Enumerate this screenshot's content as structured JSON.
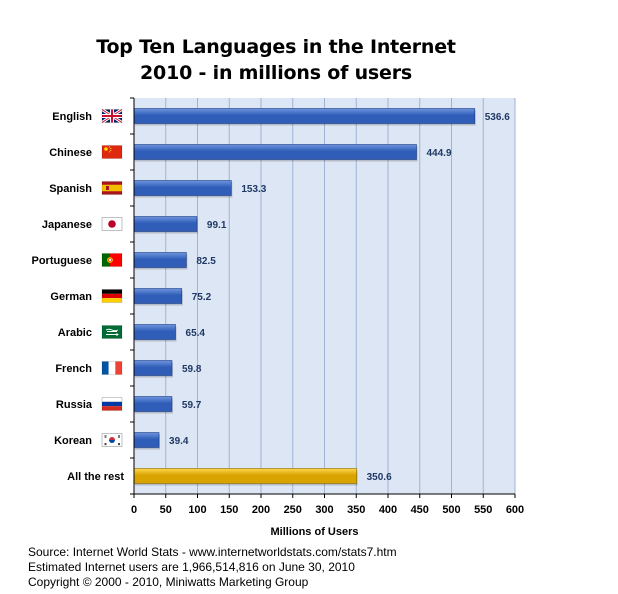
{
  "chart_data": {
    "type": "bar",
    "orientation": "horizontal",
    "title": "Top Ten Languages in the Internet",
    "subtitle": "2010 - in millions of users",
    "xlabel": "Millions of Users",
    "ylabel": "",
    "xlim": [
      0,
      600
    ],
    "xticks": [
      0,
      50,
      100,
      150,
      200,
      250,
      300,
      350,
      400,
      450,
      500,
      550,
      600
    ],
    "grid": "vertical",
    "categories": [
      "English",
      "Chinese",
      "Spanish",
      "Japanese",
      "Portuguese",
      "German",
      "Arabic",
      "French",
      "Russia",
      "Korean",
      "All the rest"
    ],
    "values": [
      536.6,
      444.9,
      153.3,
      99.1,
      82.5,
      75.2,
      65.4,
      59.8,
      59.7,
      39.4,
      350.6
    ],
    "value_labels": [
      "536.6",
      "444.9",
      "153.3",
      "99.1",
      "82.5",
      "75.2",
      "65.4",
      "59.8",
      "59.7",
      "39.4",
      "350.6"
    ],
    "flags": [
      "uk-flag-icon",
      "china-flag-icon",
      "spain-flag-icon",
      "japan-flag-icon",
      "portugal-flag-icon",
      "germany-flag-icon",
      "saudi-arabia-flag-icon",
      "france-flag-icon",
      "russia-flag-icon",
      "south-korea-flag-icon",
      ""
    ],
    "colors": {
      "bar": "#2f5db7",
      "bar_highlight": "#6f95de",
      "rest_bar": "#d9a300",
      "rest_highlight": "#ffd84d",
      "plot_bg": "#dde6f4",
      "grid": "#9fb3d3",
      "value_text": "#1f3864"
    }
  },
  "footer": {
    "line1": "Source: Internet World Stats - www.internetworldstats.com/stats7.htm",
    "line2": "Estimated Internet users are 1,966,514,816 on June 30, 2010",
    "line3": "Copyright © 2000 - 2010, Miniwatts Marketing Group"
  }
}
